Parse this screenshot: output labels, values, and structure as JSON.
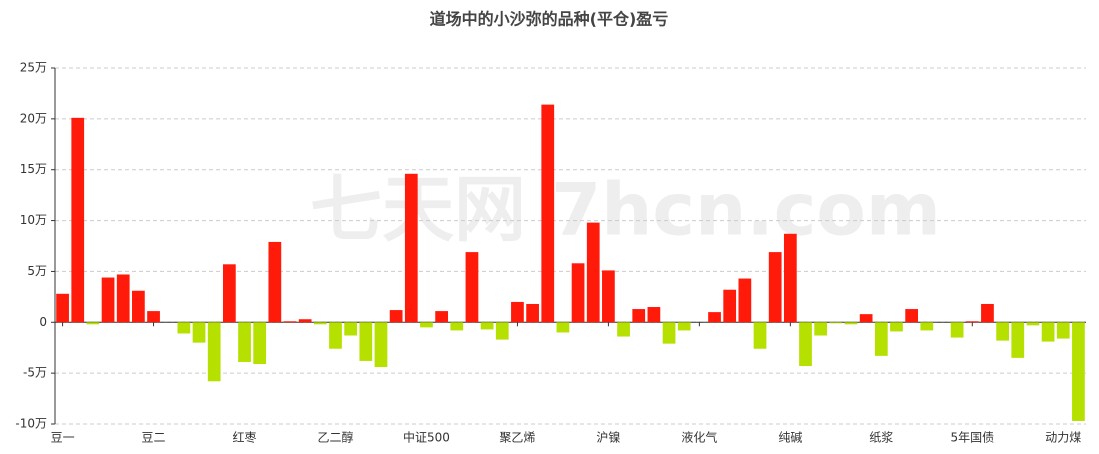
{
  "chart_data": {
    "type": "bar",
    "title": "道场中的小沙弥的品种(平仓)盈亏",
    "watermark": "七天网 7hcn.com",
    "categories": [
      "豆一",
      null,
      null,
      null,
      null,
      null,
      "豆二",
      null,
      null,
      null,
      null,
      null,
      "红枣",
      null,
      null,
      null,
      null,
      null,
      "乙二醇",
      null,
      null,
      null,
      null,
      null,
      "中证500",
      null,
      null,
      null,
      null,
      null,
      "聚乙烯",
      null,
      null,
      null,
      null,
      null,
      "沪镍",
      null,
      null,
      null,
      null,
      null,
      "液化气",
      null,
      null,
      null,
      null,
      null,
      "纯碱",
      null,
      null,
      null,
      null,
      null,
      "纸浆",
      null,
      null,
      null,
      null,
      null,
      "5年国债",
      null,
      null,
      null,
      null,
      null,
      "动力煤",
      null
    ],
    "values": [
      2.8,
      20.1,
      -0.2,
      4.4,
      4.7,
      3.1,
      1.1,
      0,
      -1.1,
      -2.0,
      -5.8,
      5.7,
      -3.9,
      -4.1,
      7.9,
      0.1,
      0.3,
      -0.2,
      -2.6,
      -1.3,
      -3.8,
      -4.4,
      1.2,
      14.6,
      -0.5,
      1.1,
      -0.8,
      6.9,
      -0.7,
      -1.7,
      2.0,
      1.8,
      21.4,
      -1.0,
      5.8,
      9.8,
      5.1,
      -1.4,
      1.3,
      1.5,
      -2.1,
      -0.8,
      0,
      1.0,
      3.2,
      4.3,
      -2.6,
      6.9,
      8.7,
      -4.3,
      -1.3,
      -0.1,
      -0.2,
      0.8,
      -3.3,
      -0.9,
      1.3,
      -0.8,
      0,
      -1.5,
      0.1,
      1.8,
      -1.8,
      -3.5,
      -0.3,
      -1.9,
      -1.6,
      -9.7
    ],
    "positive_color": "#ff1a0a",
    "negative_color": "#b5e000",
    "ylim": [
      -10,
      25
    ],
    "yticks": [
      {
        "value": -10,
        "label": "-10万"
      },
      {
        "value": -5,
        "label": "-5万"
      },
      0,
      {
        "value": 5,
        "label": "5万"
      },
      {
        "value": 10,
        "label": "10万"
      },
      {
        "value": 15,
        "label": "15万"
      },
      {
        "value": 20,
        "label": "20万"
      },
      {
        "value": 25,
        "label": "25万"
      }
    ],
    "grid": true
  }
}
